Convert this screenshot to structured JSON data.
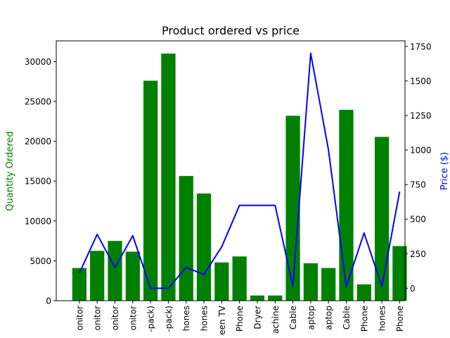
{
  "chart_data": {
    "type": "bar",
    "title": "Product ordered vs price",
    "xlabel": "",
    "ylabel": "Quantity Ordered",
    "y2label": "Price ($)",
    "colors": {
      "bars": "#008000",
      "line": "#0000ff",
      "ylabel": "#008000",
      "y2label": "#0000ff"
    },
    "ylim": [
      0,
      32600
    ],
    "y2lim": [
      -90,
      1790
    ],
    "yticks": [
      0,
      5000,
      10000,
      15000,
      20000,
      25000,
      30000
    ],
    "y2ticks": [
      0,
      250,
      500,
      750,
      1000,
      1250,
      1500,
      1750
    ],
    "categories": [
      "onitor",
      "onitor",
      "onitor",
      "onitor",
      "-pack)",
      "-pack)",
      "hones",
      "hones",
      "een TV",
      "Phone",
      "Dryer",
      "achine",
      "Cable",
      "aptop",
      "aptop",
      "Cable",
      "Phone",
      "hones",
      "Phone"
    ],
    "series": [
      {
        "type": "bar",
        "axis": "left",
        "values": [
          4100,
          6250,
          7500,
          6150,
          27600,
          31000,
          15650,
          13450,
          4800,
          5550,
          650,
          650,
          23200,
          4700,
          4100,
          23950,
          2050,
          20550,
          6850
        ]
      },
      {
        "type": "line",
        "axis": "right",
        "values": [
          110,
          390,
          150,
          380,
          0,
          0,
          150,
          100,
          300,
          600,
          600,
          600,
          12,
          1700,
          1000,
          12,
          400,
          12,
          700
        ]
      }
    ],
    "grid": false,
    "legend": "none"
  }
}
